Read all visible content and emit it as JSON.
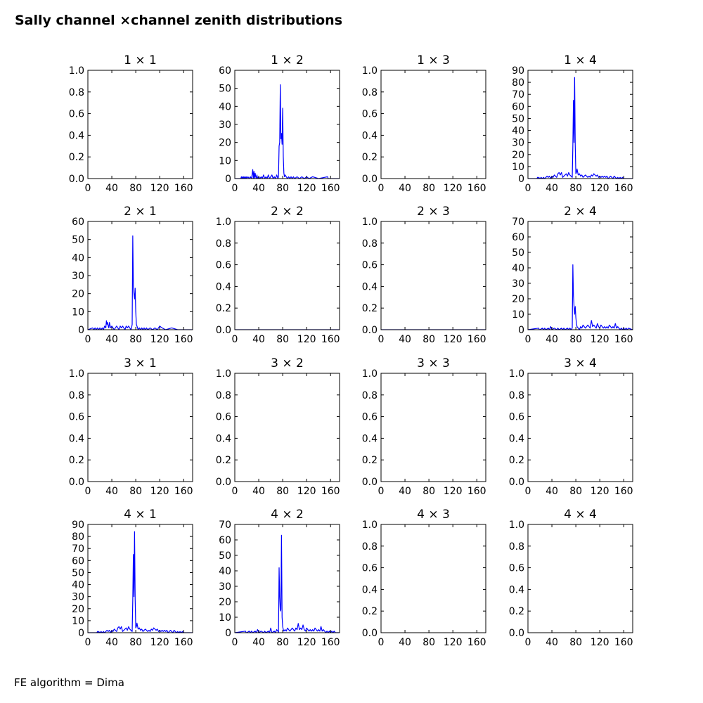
{
  "figure": {
    "title": "Sally channel ×channel zenith distributions",
    "footer": "FE algorithm = Dima"
  },
  "colors": {
    "series": "#0000ff",
    "axes": "#000000",
    "background": "#ffffff"
  },
  "chart_data": [
    {
      "type": "line",
      "title": "1  × 1",
      "xlim": [
        0,
        175
      ],
      "ylim": [
        0,
        1.0
      ],
      "xticks": [
        "0",
        "40",
        "80",
        "120",
        "160"
      ],
      "yticks": [
        "0.0",
        "0.2",
        "0.4",
        "0.6",
        "0.8",
        "1.0"
      ],
      "x": [],
      "y": []
    },
    {
      "type": "line",
      "title": "1  × 2",
      "xlim": [
        0,
        175
      ],
      "ylim": [
        0,
        60
      ],
      "xticks": [
        "0",
        "40",
        "80",
        "120",
        "160"
      ],
      "yticks": [
        "0",
        "10",
        "20",
        "30",
        "40",
        "50",
        "60"
      ],
      "x": [
        0,
        10,
        11,
        12,
        13,
        14,
        15,
        16,
        17,
        18,
        19,
        20,
        22,
        24,
        26,
        28,
        30,
        31,
        32,
        33,
        34,
        35,
        36,
        37,
        38,
        40,
        42,
        44,
        46,
        48,
        50,
        52,
        54,
        56,
        58,
        60,
        62,
        64,
        66,
        68,
        70,
        72,
        73,
        74,
        75,
        76,
        77,
        78,
        79,
        80,
        81,
        82,
        83,
        84,
        86,
        88,
        90,
        92,
        94,
        96,
        98,
        100,
        104,
        108,
        112,
        116,
        120,
        124,
        130,
        140,
        155,
        156,
        157,
        175
      ],
      "y": [
        0,
        0,
        1,
        0,
        1,
        0,
        1,
        0,
        1,
        0,
        1,
        0,
        1,
        0,
        1,
        0,
        5,
        0,
        4,
        0,
        3,
        1,
        0,
        2,
        0,
        1,
        0,
        1,
        0,
        2,
        0,
        1,
        0,
        2,
        0,
        1,
        2,
        0,
        1,
        0,
        2,
        0,
        1,
        18,
        20,
        52,
        22,
        25,
        19,
        39,
        12,
        3,
        1,
        2,
        1,
        0,
        1,
        0,
        1,
        0,
        1,
        0,
        1,
        0,
        1,
        0,
        1,
        0,
        1,
        0,
        1,
        0,
        0,
        0
      ]
    },
    {
      "type": "line",
      "title": "1  × 3",
      "xlim": [
        0,
        175
      ],
      "ylim": [
        0,
        1.0
      ],
      "xticks": [
        "0",
        "40",
        "80",
        "120",
        "160"
      ],
      "yticks": [
        "0.0",
        "0.2",
        "0.4",
        "0.6",
        "0.8",
        "1.0"
      ],
      "x": [],
      "y": []
    },
    {
      "type": "line",
      "title": "1  × 4",
      "xlim": [
        0,
        175
      ],
      "ylim": [
        0,
        90
      ],
      "xticks": [
        "0",
        "40",
        "80",
        "120",
        "160"
      ],
      "yticks": [
        "0",
        "10",
        "20",
        "30",
        "40",
        "50",
        "60",
        "70",
        "80",
        "90"
      ],
      "x": [
        0,
        15,
        16,
        17,
        18,
        20,
        22,
        24,
        26,
        28,
        30,
        32,
        34,
        36,
        38,
        40,
        42,
        44,
        46,
        48,
        50,
        52,
        54,
        56,
        58,
        60,
        62,
        64,
        66,
        68,
        70,
        72,
        74,
        75,
        76,
        77,
        78,
        79,
        80,
        81,
        82,
        84,
        86,
        88,
        90,
        92,
        94,
        96,
        98,
        100,
        102,
        104,
        106,
        108,
        110,
        112,
        114,
        116,
        118,
        120,
        122,
        124,
        126,
        128,
        130,
        132,
        134,
        136,
        138,
        140,
        142,
        144,
        146,
        148,
        150,
        152,
        154,
        156,
        158,
        160,
        175
      ],
      "y": [
        0,
        0,
        1,
        0,
        1,
        0,
        1,
        0,
        1,
        0,
        1,
        2,
        1,
        2,
        0,
        2,
        1,
        3,
        2,
        1,
        4,
        5,
        3,
        5,
        1,
        2,
        3,
        4,
        2,
        5,
        3,
        2,
        1,
        27,
        65,
        30,
        84,
        28,
        4,
        5,
        8,
        3,
        4,
        2,
        3,
        1,
        2,
        3,
        2,
        1,
        2,
        1,
        3,
        2,
        4,
        3,
        2,
        3,
        1,
        2,
        1,
        2,
        1,
        2,
        1,
        2,
        0,
        1,
        2,
        1,
        0,
        2,
        1,
        0,
        1,
        0,
        1,
        0,
        1,
        0,
        0
      ]
    },
    {
      "type": "line",
      "title": "2  × 1",
      "xlim": [
        0,
        175
      ],
      "ylim": [
        0,
        60
      ],
      "xticks": [
        "0",
        "40",
        "80",
        "120",
        "160"
      ],
      "yticks": [
        "0",
        "10",
        "20",
        "30",
        "40",
        "50",
        "60"
      ],
      "x": [
        0,
        8,
        10,
        12,
        14,
        16,
        18,
        20,
        22,
        24,
        26,
        28,
        30,
        31,
        32,
        33,
        34,
        35,
        36,
        38,
        40,
        42,
        44,
        46,
        48,
        50,
        52,
        54,
        56,
        58,
        60,
        62,
        64,
        66,
        68,
        70,
        72,
        73,
        74,
        75,
        76,
        77,
        78,
        79,
        80,
        81,
        82,
        83,
        84,
        86,
        88,
        90,
        92,
        94,
        96,
        98,
        100,
        104,
        108,
        112,
        116,
        120,
        124,
        130,
        140,
        150,
        151,
        175
      ],
      "y": [
        0,
        1,
        0,
        1,
        0,
        1,
        0,
        1,
        0,
        1,
        0,
        2,
        1,
        5,
        3,
        4,
        2,
        1,
        4,
        1,
        2,
        1,
        0,
        1,
        2,
        1,
        0,
        2,
        1,
        2,
        1,
        0,
        2,
        1,
        2,
        1,
        0,
        1,
        3,
        52,
        24,
        20,
        17,
        23,
        10,
        3,
        2,
        1,
        0,
        1,
        0,
        1,
        0,
        1,
        0,
        1,
        0,
        1,
        0,
        1,
        0,
        2,
        1,
        0,
        1,
        0,
        0,
        0
      ]
    },
    {
      "type": "line",
      "title": "2  × 2",
      "xlim": [
        0,
        175
      ],
      "ylim": [
        0,
        1.0
      ],
      "xticks": [
        "0",
        "40",
        "80",
        "120",
        "160"
      ],
      "yticks": [
        "0.0",
        "0.2",
        "0.4",
        "0.6",
        "0.8",
        "1.0"
      ],
      "x": [
        0,
        175
      ],
      "y": [
        0,
        0
      ]
    },
    {
      "type": "line",
      "title": "2  × 3",
      "xlim": [
        0,
        175
      ],
      "ylim": [
        0,
        1.0
      ],
      "xticks": [
        "0",
        "40",
        "80",
        "120",
        "160"
      ],
      "yticks": [
        "0.0",
        "0.2",
        "0.4",
        "0.6",
        "0.8",
        "1.0"
      ],
      "x": [
        0,
        175
      ],
      "y": [
        0,
        0
      ]
    },
    {
      "type": "line",
      "title": "2  × 4",
      "xlim": [
        0,
        175
      ],
      "ylim": [
        0,
        70
      ],
      "xticks": [
        "0",
        "40",
        "80",
        "120",
        "160"
      ],
      "yticks": [
        "0",
        "10",
        "20",
        "30",
        "40",
        "50",
        "60",
        "70"
      ],
      "x": [
        0,
        18,
        19,
        20,
        24,
        26,
        28,
        30,
        34,
        36,
        38,
        40,
        44,
        48,
        50,
        52,
        56,
        58,
        60,
        62,
        66,
        68,
        70,
        72,
        74,
        75,
        76,
        77,
        78,
        79,
        80,
        81,
        82,
        84,
        86,
        88,
        90,
        92,
        94,
        96,
        98,
        100,
        102,
        104,
        106,
        108,
        110,
        112,
        114,
        116,
        118,
        120,
        122,
        124,
        126,
        128,
        130,
        132,
        134,
        136,
        138,
        140,
        142,
        144,
        146,
        148,
        150,
        152,
        154,
        156,
        158,
        160,
        162,
        164,
        166,
        168,
        175
      ],
      "y": [
        0,
        1,
        0,
        0,
        1,
        0,
        1,
        0,
        1,
        0,
        2,
        0,
        1,
        0,
        1,
        0,
        1,
        0,
        1,
        0,
        1,
        0,
        1,
        0,
        1,
        42,
        22,
        15,
        10,
        15,
        8,
        4,
        2,
        1,
        0,
        2,
        1,
        3,
        2,
        1,
        2,
        3,
        2,
        1,
        6,
        2,
        3,
        2,
        1,
        4,
        2,
        1,
        3,
        2,
        1,
        2,
        1,
        2,
        1,
        3,
        2,
        1,
        2,
        1,
        4,
        1,
        2,
        1,
        0,
        1,
        0,
        1,
        0,
        1,
        0,
        1,
        0
      ]
    },
    {
      "type": "line",
      "title": "3  × 1",
      "xlim": [
        0,
        175
      ],
      "ylim": [
        0,
        1.0
      ],
      "xticks": [
        "0",
        "40",
        "80",
        "120",
        "160"
      ],
      "yticks": [
        "0.0",
        "0.2",
        "0.4",
        "0.6",
        "0.8",
        "1.0"
      ],
      "x": [],
      "y": []
    },
    {
      "type": "line",
      "title": "3  × 2",
      "xlim": [
        0,
        175
      ],
      "ylim": [
        0,
        1.0
      ],
      "xticks": [
        "0",
        "40",
        "80",
        "120",
        "160"
      ],
      "yticks": [
        "0.0",
        "0.2",
        "0.4",
        "0.6",
        "0.8",
        "1.0"
      ],
      "x": [],
      "y": []
    },
    {
      "type": "line",
      "title": "3  × 3",
      "xlim": [
        0,
        175
      ],
      "ylim": [
        0,
        1.0
      ],
      "xticks": [
        "0",
        "40",
        "80",
        "120",
        "160"
      ],
      "yticks": [
        "0.0",
        "0.2",
        "0.4",
        "0.6",
        "0.8",
        "1.0"
      ],
      "x": [],
      "y": []
    },
    {
      "type": "line",
      "title": "3  × 4",
      "xlim": [
        0,
        175
      ],
      "ylim": [
        0,
        1.0
      ],
      "xticks": [
        "0",
        "40",
        "80",
        "120",
        "160"
      ],
      "yticks": [
        "0.0",
        "0.2",
        "0.4",
        "0.6",
        "0.8",
        "1.0"
      ],
      "x": [],
      "y": []
    },
    {
      "type": "line",
      "title": "4  × 1",
      "xlim": [
        0,
        175
      ],
      "ylim": [
        0,
        90
      ],
      "xticks": [
        "0",
        "40",
        "80",
        "120",
        "160"
      ],
      "yticks": [
        "0",
        "10",
        "20",
        "30",
        "40",
        "50",
        "60",
        "70",
        "80",
        "90"
      ],
      "x": [
        0,
        15,
        16,
        17,
        18,
        20,
        22,
        24,
        26,
        28,
        30,
        32,
        34,
        36,
        38,
        40,
        42,
        44,
        46,
        48,
        50,
        52,
        54,
        56,
        58,
        60,
        62,
        64,
        66,
        68,
        70,
        72,
        74,
        75,
        76,
        77,
        78,
        79,
        80,
        81,
        82,
        84,
        86,
        88,
        90,
        92,
        94,
        96,
        98,
        100,
        102,
        104,
        106,
        108,
        110,
        112,
        114,
        116,
        118,
        120,
        122,
        124,
        126,
        128,
        130,
        132,
        134,
        136,
        138,
        140,
        142,
        144,
        146,
        148,
        150,
        152,
        154,
        156,
        158,
        160,
        175
      ],
      "y": [
        0,
        0,
        1,
        0,
        1,
        0,
        1,
        0,
        1,
        0,
        1,
        2,
        1,
        2,
        0,
        2,
        1,
        3,
        2,
        1,
        4,
        5,
        3,
        5,
        1,
        2,
        3,
        4,
        2,
        5,
        3,
        2,
        1,
        27,
        65,
        30,
        84,
        28,
        4,
        5,
        8,
        3,
        4,
        2,
        3,
        1,
        2,
        3,
        2,
        1,
        2,
        1,
        3,
        2,
        4,
        3,
        2,
        3,
        1,
        2,
        1,
        2,
        1,
        2,
        1,
        2,
        0,
        1,
        2,
        1,
        0,
        2,
        1,
        0,
        1,
        0,
        1,
        0,
        1,
        0,
        0
      ]
    },
    {
      "type": "line",
      "title": "4  × 2",
      "xlim": [
        0,
        175
      ],
      "ylim": [
        0,
        70
      ],
      "xticks": [
        "0",
        "40",
        "80",
        "120",
        "160"
      ],
      "yticks": [
        "0",
        "10",
        "20",
        "30",
        "40",
        "50",
        "60",
        "70"
      ],
      "x": [
        0,
        18,
        19,
        20,
        24,
        26,
        28,
        30,
        34,
        36,
        38,
        40,
        44,
        48,
        50,
        52,
        56,
        58,
        60,
        62,
        66,
        68,
        70,
        72,
        73,
        74,
        75,
        76,
        77,
        78,
        79,
        80,
        81,
        82,
        84,
        86,
        88,
        90,
        92,
        94,
        96,
        98,
        100,
        102,
        104,
        106,
        108,
        110,
        112,
        114,
        116,
        118,
        120,
        122,
        124,
        126,
        128,
        130,
        132,
        134,
        136,
        138,
        140,
        142,
        144,
        146,
        148,
        150,
        152,
        154,
        156,
        158,
        160,
        162,
        164,
        166,
        168,
        175
      ],
      "y": [
        0,
        1,
        0,
        0,
        1,
        0,
        1,
        0,
        1,
        0,
        2,
        0,
        1,
        0,
        1,
        0,
        1,
        0,
        3,
        0,
        1,
        0,
        2,
        1,
        0,
        42,
        23,
        14,
        15,
        63,
        10,
        4,
        2,
        1,
        2,
        1,
        3,
        2,
        1,
        2,
        3,
        2,
        1,
        3,
        2,
        6,
        2,
        3,
        2,
        5,
        2,
        1,
        3,
        2,
        1,
        2,
        1,
        2,
        1,
        3,
        2,
        1,
        2,
        1,
        4,
        1,
        2,
        1,
        0,
        1,
        0,
        1,
        0,
        1,
        0,
        1,
        0,
        0
      ]
    },
    {
      "type": "line",
      "title": "4  × 3",
      "xlim": [
        0,
        175
      ],
      "ylim": [
        0,
        1.0
      ],
      "xticks": [
        "0",
        "40",
        "80",
        "120",
        "160"
      ],
      "yticks": [
        "0.0",
        "0.2",
        "0.4",
        "0.6",
        "0.8",
        "1.0"
      ],
      "x": [],
      "y": []
    },
    {
      "type": "line",
      "title": "4  × 4",
      "xlim": [
        0,
        175
      ],
      "ylim": [
        0,
        1.0
      ],
      "xticks": [
        "0",
        "40",
        "80",
        "120",
        "160"
      ],
      "yticks": [
        "0.0",
        "0.2",
        "0.4",
        "0.6",
        "0.8",
        "1.0"
      ],
      "x": [],
      "y": []
    }
  ]
}
